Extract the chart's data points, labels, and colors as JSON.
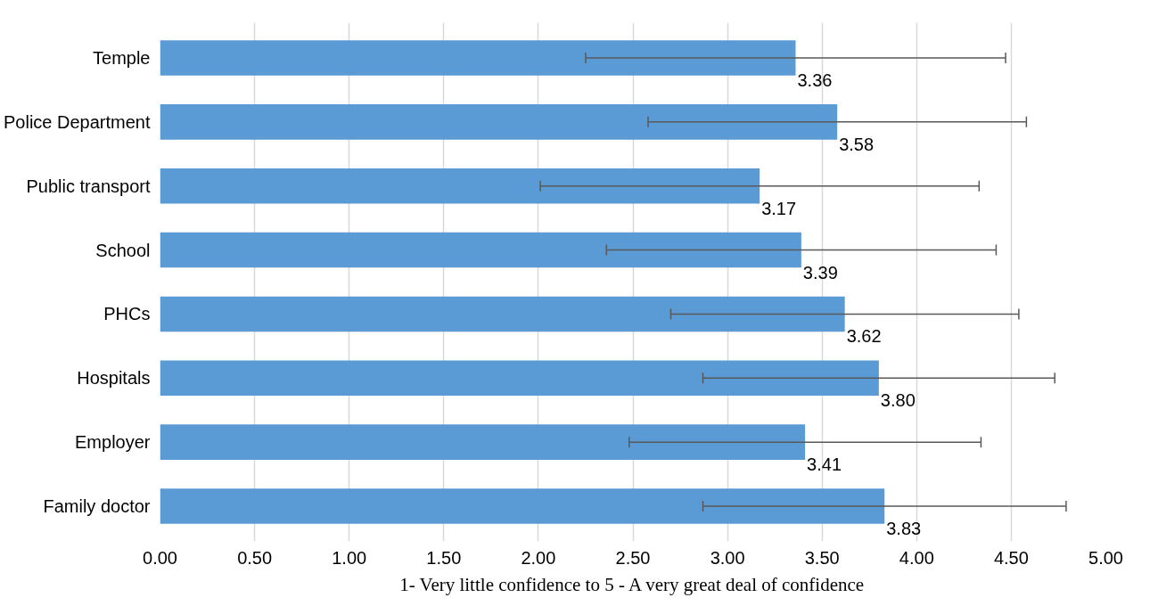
{
  "chart_data": {
    "type": "bar",
    "orientation": "horizontal",
    "categories": [
      "Temple",
      "Police Department",
      "Public transport",
      "School",
      "PHCs",
      "Hospitals",
      "Employer",
      "Family doctor"
    ],
    "values": [
      3.36,
      3.58,
      3.17,
      3.39,
      3.62,
      3.8,
      3.41,
      3.83
    ],
    "errors": [
      1.11,
      1.0,
      1.16,
      1.03,
      0.92,
      0.93,
      0.93,
      0.96
    ],
    "color": "#5b9bd5",
    "xlabel": "1- Very little confidence to 5 - A very great deal of confidence",
    "xlim": [
      0,
      5
    ],
    "xticks": [
      {
        "value": 0,
        "label": "0.00"
      },
      {
        "value": 0.5,
        "label": "0.50"
      },
      {
        "value": 1,
        "label": "1.00"
      },
      {
        "value": 1.5,
        "label": "1.50"
      },
      {
        "value": 2,
        "label": "2.00"
      },
      {
        "value": 2.5,
        "label": "2.50"
      },
      {
        "value": 3,
        "label": "3.00"
      },
      {
        "value": 3.5,
        "label": "3.50"
      },
      {
        "value": 4,
        "label": "4.00"
      },
      {
        "value": 4.5,
        "label": "4.50"
      },
      {
        "value": 5,
        "label": "5.00"
      }
    ],
    "value_labels": [
      "3.36",
      "3.58",
      "3.17",
      "3.39",
      "3.62",
      "3.80",
      "3.41",
      "3.83"
    ],
    "grid": "x"
  }
}
